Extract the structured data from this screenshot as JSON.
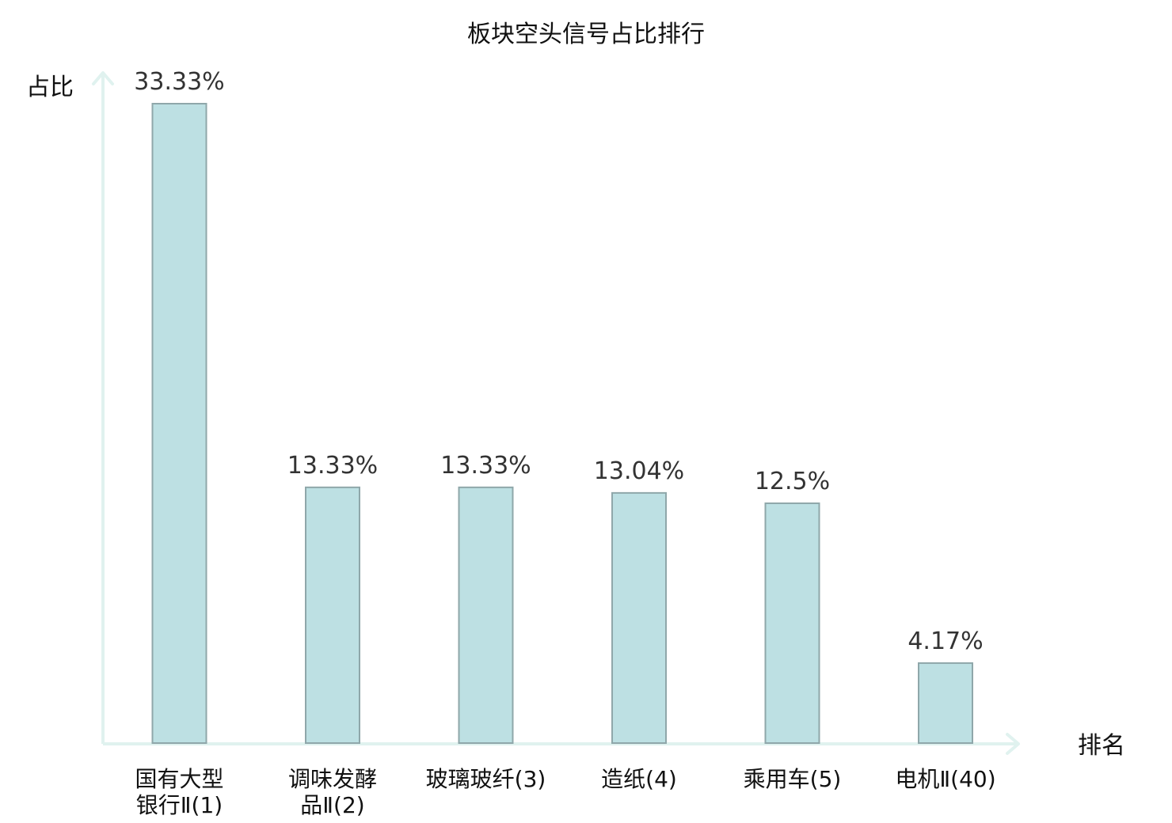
{
  "chart_data": {
    "type": "bar",
    "title": "板块空头信号占比排行",
    "ylabel": "占比",
    "xlabel": "排名",
    "ylim": [
      0,
      35
    ],
    "categories": [
      [
        "国有大型",
        "银行Ⅱ(1)"
      ],
      [
        "调味发酵",
        "品Ⅱ(2)"
      ],
      [
        "玻璃玻纤(3)"
      ],
      [
        "造纸(4)"
      ],
      [
        "乘用车(5)"
      ],
      [
        "电机Ⅱ(40)"
      ]
    ],
    "values": [
      33.33,
      13.33,
      13.33,
      13.04,
      12.5,
      4.17
    ],
    "value_labels": [
      "33.33%",
      "13.33%",
      "13.33%",
      "13.04%",
      "12.5%",
      "4.17%"
    ],
    "highlight_index": 5,
    "colors": {
      "bar_fill": "#bde0e3",
      "bar_stroke": "#8fa7aa",
      "axis": "#e0f2ef",
      "highlight_text": "#e02020",
      "text": "#111111"
    }
  }
}
